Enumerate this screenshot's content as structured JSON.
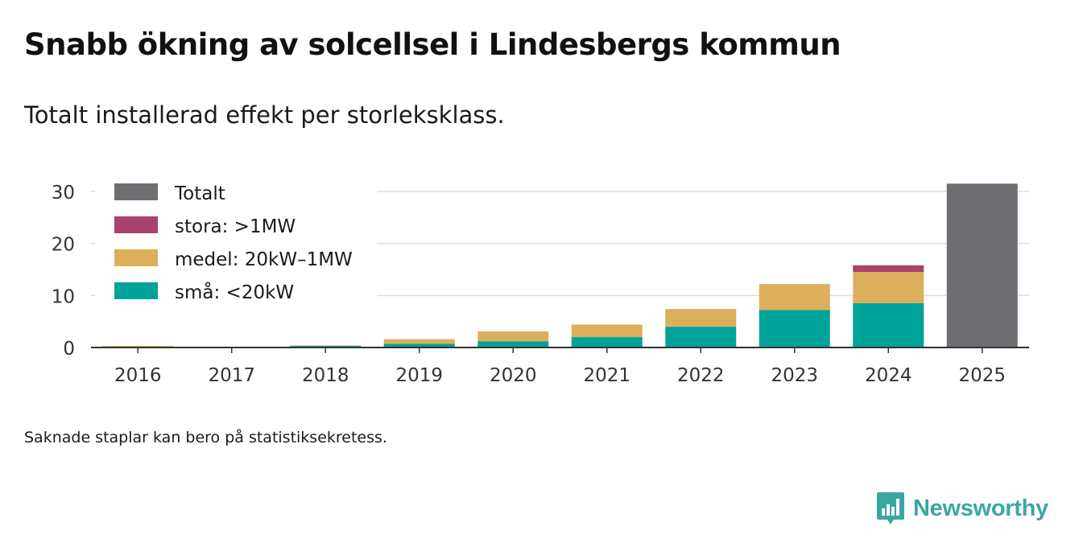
{
  "title": "Snabb ökning av solcellsel i Lindesbergs kommun",
  "subtitle": "Totalt installerad effekt per storleksklass.",
  "footnote": "Saknade staplar kan bero på statistiksekretess.",
  "brand": {
    "name": "Newsworthy",
    "icon": "newsworthy-logo-icon"
  },
  "colors": {
    "totalt": "#6e6e73",
    "stora": "#a8436b",
    "medel": "#ddaf5c",
    "sma": "#00a399",
    "grid": "#dddddd",
    "axis": "#333333"
  },
  "chart_data": {
    "type": "bar",
    "stacked": true,
    "categories": [
      "2016",
      "2017",
      "2018",
      "2019",
      "2020",
      "2021",
      "2022",
      "2023",
      "2024",
      "2025"
    ],
    "series": [
      {
        "key": "sma",
        "name": "små: <20kW",
        "values": [
          0.1,
          0,
          0.3,
          0.7,
          1.2,
          2.0,
          4.0,
          7.2,
          8.5,
          0
        ]
      },
      {
        "key": "medel",
        "name": "medel: 20kW–1MW",
        "values": [
          0.2,
          0,
          0.1,
          0.9,
          1.9,
          2.4,
          3.4,
          5.0,
          6.0,
          0
        ]
      },
      {
        "key": "stora",
        "name": "stora: >1MW",
        "values": [
          0,
          0,
          0,
          0,
          0,
          0,
          0,
          0,
          1.3,
          0
        ]
      },
      {
        "key": "totalt",
        "name": "Totalt",
        "values": [
          0,
          0,
          0,
          0,
          0,
          0,
          0,
          0,
          0,
          31.5
        ]
      }
    ],
    "legend_order": [
      "totalt",
      "stora",
      "medel",
      "sma"
    ],
    "legend_position": "top-left",
    "ylim": [
      0,
      32
    ],
    "yticks": [
      0,
      10,
      20,
      30
    ],
    "xlabel": "",
    "ylabel": "",
    "grid": true
  }
}
